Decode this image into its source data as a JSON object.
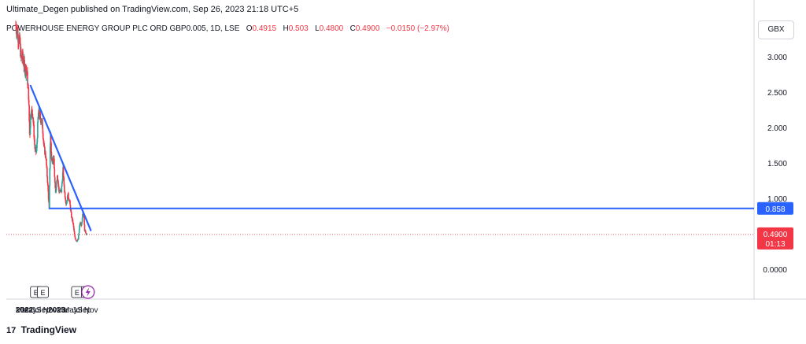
{
  "header": {
    "published": "Ultimate_Degen published on TradingView.com, Sep 26, 2023 21:18 UTC+5"
  },
  "symbol": {
    "name": "POWERHOUSE ENERGY GROUP PLC ORD GBP0.005, 1D, LSE",
    "o_key": "O",
    "o_val": "0.4915",
    "h_key": "H",
    "h_val": "0.503",
    "l_key": "L",
    "l_val": "0.4800",
    "c_key": "C",
    "c_val": "0.4900",
    "change": "−0.0150 (−2.97%)"
  },
  "currency_label": "GBX",
  "footer": {
    "brand": "TradingView",
    "logo_icon": "tradingview-logo-icon"
  },
  "colors": {
    "up": "#26a69a",
    "down": "#f23645",
    "trendline": "#2962ff",
    "price_label": "#f23645",
    "level_label": "#2962ff"
  },
  "chart_data": {
    "type": "candlestick",
    "y_axis_ticks": [
      "3.000",
      "2.500",
      "2.000",
      "1.500",
      "1.000",
      "0.0000"
    ],
    "ylim": [
      -0.2,
      3.55
    ],
    "x_axis_labels": [
      "2022",
      "Mar",
      "May",
      "Jul",
      "Sep",
      "Nov",
      "2023",
      "Mar",
      "May",
      "Jul",
      "Sep",
      "Nov"
    ],
    "x_axis_dates": [
      "2022-01-01",
      "2022-03-01",
      "2022-05-01",
      "2022-07-01",
      "2022-09-01",
      "2022-11-01",
      "2023-01-01",
      "2023-03-01",
      "2023-05-01",
      "2023-07-01",
      "2023-09-01",
      "2023-11-01"
    ],
    "price_series": [
      {
        "date": "2022-01-01",
        "close": 3.45
      },
      {
        "date": "2022-01-20",
        "close": 3.3
      },
      {
        "date": "2022-02-05",
        "close": 3.2
      },
      {
        "date": "2022-02-20",
        "close": 2.95
      },
      {
        "date": "2022-03-01",
        "close": 3.0
      },
      {
        "date": "2022-03-20",
        "close": 2.85
      },
      {
        "date": "2022-04-10",
        "close": 2.8
      },
      {
        "date": "2022-04-25",
        "close": 2.45
      },
      {
        "date": "2022-05-05",
        "close": 1.85
      },
      {
        "date": "2022-05-15",
        "close": 2.25
      },
      {
        "date": "2022-06-01",
        "close": 2.2
      },
      {
        "date": "2022-06-20",
        "close": 1.7
      },
      {
        "date": "2022-07-05",
        "close": 1.65
      },
      {
        "date": "2022-07-20",
        "close": 2.2
      },
      {
        "date": "2022-08-05",
        "close": 2.15
      },
      {
        "date": "2022-08-25",
        "close": 2.05
      },
      {
        "date": "2022-09-10",
        "close": 1.7
      },
      {
        "date": "2022-09-25",
        "close": 1.6
      },
      {
        "date": "2022-10-10",
        "close": 1.25
      },
      {
        "date": "2022-10-25",
        "close": 0.85
      },
      {
        "date": "2022-11-05",
        "close": 1.95
      },
      {
        "date": "2022-11-15",
        "close": 1.55
      },
      {
        "date": "2022-12-05",
        "close": 1.55
      },
      {
        "date": "2022-12-20",
        "close": 1.05
      },
      {
        "date": "2023-01-05",
        "close": 1.35
      },
      {
        "date": "2023-01-20",
        "close": 1.1
      },
      {
        "date": "2023-02-10",
        "close": 1.1
      },
      {
        "date": "2023-02-25",
        "close": 1.4
      },
      {
        "date": "2023-03-10",
        "close": 1.1
      },
      {
        "date": "2023-03-25",
        "close": 0.92
      },
      {
        "date": "2023-04-10",
        "close": 1.05
      },
      {
        "date": "2023-04-25",
        "close": 0.95
      },
      {
        "date": "2023-05-10",
        "close": 0.75
      },
      {
        "date": "2023-05-25",
        "close": 0.65
      },
      {
        "date": "2023-06-10",
        "close": 0.45
      },
      {
        "date": "2023-06-25",
        "close": 0.4
      },
      {
        "date": "2023-07-10",
        "close": 0.42
      },
      {
        "date": "2023-07-25",
        "close": 0.65
      },
      {
        "date": "2023-08-10",
        "close": 0.62
      },
      {
        "date": "2023-08-20",
        "close": 0.8
      },
      {
        "date": "2023-08-30",
        "close": 0.75
      },
      {
        "date": "2023-09-05",
        "close": 0.55
      },
      {
        "date": "2023-09-15",
        "close": 0.52
      },
      {
        "date": "2023-09-26",
        "close": 0.49
      }
    ],
    "trendline": {
      "start": {
        "date": "2022-05-10",
        "price": 2.6
      },
      "end": {
        "date": "2023-11-01",
        "price": 0.54
      }
    },
    "support_line": {
      "start": {
        "date": "2022-10-20",
        "price": 0.858
      },
      "end": {
        "date": "2023-11-12",
        "price": 0.858
      },
      "label": "0.858"
    },
    "last_price": {
      "value": 0.49,
      "label": "0.4900",
      "countdown": "01:13"
    },
    "earnings_markers": [
      {
        "date": "2022-06-30",
        "label": "E"
      },
      {
        "date": "2022-08-30",
        "label": "E"
      },
      {
        "date": "2023-06-30",
        "label": "E"
      },
      {
        "date": "2023-09-25",
        "label": "E"
      }
    ],
    "dividend_marker": {
      "date": "2023-10-05",
      "icon": "lightning-icon"
    }
  }
}
